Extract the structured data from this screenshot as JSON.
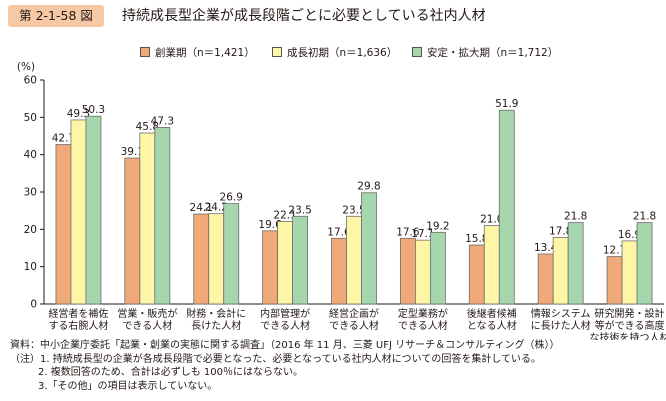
{
  "figure": {
    "number": "第 2-1-58 図",
    "title": "持続成長型企業が成長段階ごとに必要としている社内人材"
  },
  "chart_data": {
    "type": "bar",
    "title": "持続成長型企業が成長段階ごとに必要としている社内人材",
    "ylabel": "(%)",
    "xlabel": "",
    "ylim": [
      0,
      60
    ],
    "yticks": [
      "0",
      "10",
      "20",
      "30",
      "40",
      "50",
      "60"
    ],
    "grid": false,
    "legend_position": "top",
    "categories": [
      [
        "経営者を補佐",
        "する右腕人材"
      ],
      [
        "営業・販売が",
        "できる人材"
      ],
      [
        "財務・会計に",
        "長けた人材"
      ],
      [
        "内部管理が",
        "できる人材"
      ],
      [
        "経営企画が",
        "できる人材"
      ],
      [
        "定型業務が",
        "できる人材"
      ],
      [
        "後継者候補",
        "となる人材"
      ],
      [
        "情報システム",
        "に長けた人材"
      ],
      [
        "研究開発・設計",
        "等ができる高度",
        "な技術を持つ人材"
      ]
    ],
    "series": [
      {
        "name": "創業期（n＝1,421）",
        "color": "#f0a979",
        "values": [
          42.7,
          39.1,
          24.1,
          19.6,
          17.6,
          17.6,
          15.8,
          13.4,
          12.7
        ]
      },
      {
        "name": "成長初期（n＝1,636）",
        "color": "#fff5a6",
        "values": [
          49.3,
          45.8,
          24.2,
          22.1,
          23.5,
          17.1,
          21.0,
          17.8,
          16.9
        ]
      },
      {
        "name": "安定・拡大期（n＝1,712）",
        "color": "#a6d6ae",
        "values": [
          50.3,
          47.3,
          26.9,
          23.5,
          29.8,
          19.2,
          51.9,
          21.8,
          21.8
        ]
      }
    ]
  },
  "notes": [
    "資料：中小企業庁委託「起業・創業の実態に関する調査」（2016 年 11 月、三菱 UFJ リサーチ＆コンサルティング（株））",
    "（注）1. 持続成長型の企業が各成長段階で必要となった、必要となっている社内人材についての回答を集計している。",
    "2. 複数回答のため、合計は必ずしも 100％にはならない。",
    "3.「その他」の項目は表示していない。"
  ]
}
